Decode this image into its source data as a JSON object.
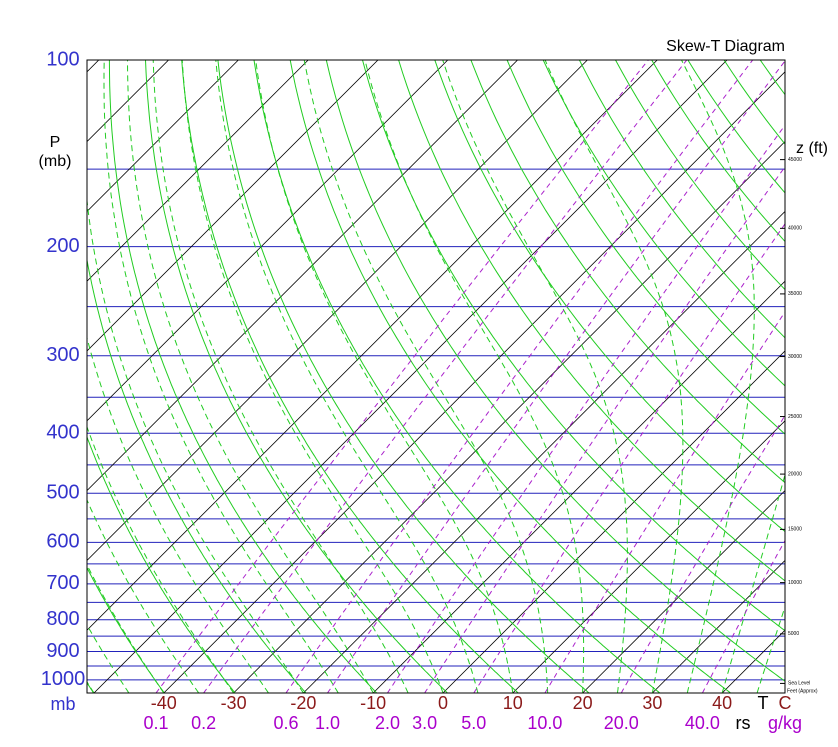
{
  "chart_data": {
    "type": "skew-t",
    "title": "Skew-T Diagram",
    "y_label": "P",
    "y_unit": "(mb)",
    "y_unit_bottom": "mb",
    "ylim": [
      1050,
      100
    ],
    "yticks": [
      100,
      200,
      300,
      400,
      500,
      600,
      700,
      800,
      900,
      1000
    ],
    "x_label": "T",
    "x_unit": "C",
    "xlim": [
      -51,
      49
    ],
    "xticks": [
      -40,
      -30,
      -20,
      -10,
      0,
      10,
      20,
      30,
      40
    ],
    "rs_label": "rs",
    "rs_unit": "g/kg",
    "mixing_ratios": [
      0.1,
      0.2,
      0.6,
      {
        "value": 1,
        "label": "1.0"
      },
      {
        "value": 2,
        "label": "2.0"
      },
      {
        "value": 3,
        "label": "3.0"
      },
      {
        "value": 5,
        "label": "5.0"
      },
      {
        "value": 10,
        "label": "10.0"
      },
      {
        "value": 20,
        "label": "20.0"
      },
      {
        "value": 40,
        "label": "40.0"
      }
    ],
    "z_label": "z (ft)",
    "z_note": "Feet (Approx)",
    "zticks": [
      {
        "value": 0,
        "label": "Sea Level"
      },
      5000,
      10000,
      15000,
      20000,
      25000,
      30000,
      35000,
      40000,
      45000
    ]
  }
}
